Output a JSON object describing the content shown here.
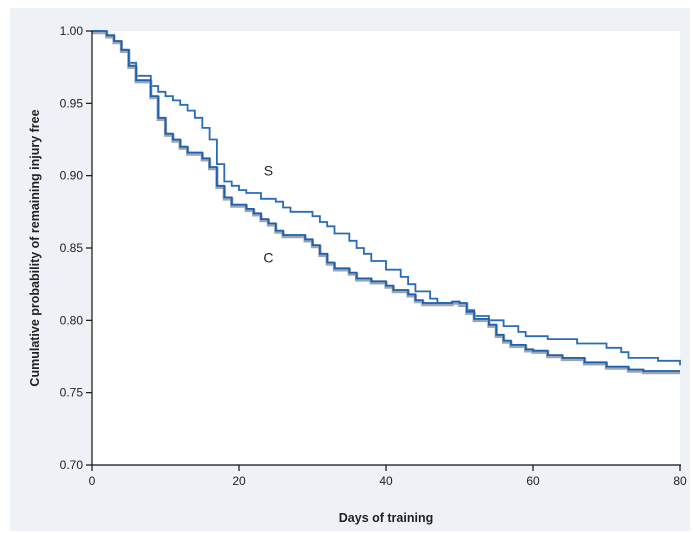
{
  "chart_data": {
    "type": "line",
    "title": "",
    "xlabel": "Days of training",
    "ylabel": "Cumulative probability of remaining injury free",
    "xlim": [
      0,
      80
    ],
    "ylim": [
      0.7,
      1.0
    ],
    "xticks": [
      0,
      20,
      40,
      60,
      80
    ],
    "xtick_labels": [
      "0",
      "20",
      "40",
      "60",
      "80"
    ],
    "yticks": [
      0.7,
      0.75,
      0.8,
      0.85,
      0.9,
      0.95,
      1.0
    ],
    "ytick_labels": [
      "0.70",
      "0.75",
      "0.80",
      "0.85",
      "0.90",
      "0.95",
      "1.00"
    ],
    "grid": false,
    "series": [
      {
        "name": "S",
        "color": "#2a6cb5",
        "step": true,
        "label_at": [
          24.0,
          0.9
        ],
        "points": [
          [
            0,
            1.0
          ],
          [
            1,
            0.999
          ],
          [
            2,
            0.997
          ],
          [
            3,
            0.993
          ],
          [
            4,
            0.987
          ],
          [
            5,
            0.978
          ],
          [
            6,
            0.969
          ],
          [
            8,
            0.962
          ],
          [
            9,
            0.958
          ],
          [
            10,
            0.955
          ],
          [
            11,
            0.952
          ],
          [
            12,
            0.949
          ],
          [
            13,
            0.945
          ],
          [
            14,
            0.94
          ],
          [
            15,
            0.933
          ],
          [
            16,
            0.925
          ],
          [
            17,
            0.908
          ],
          [
            18,
            0.896
          ],
          [
            19,
            0.893
          ],
          [
            20,
            0.89
          ],
          [
            21,
            0.888
          ],
          [
            23,
            0.884
          ],
          [
            25,
            0.882
          ],
          [
            26,
            0.878
          ],
          [
            27,
            0.875
          ],
          [
            30,
            0.872
          ],
          [
            31,
            0.868
          ],
          [
            32,
            0.865
          ],
          [
            33,
            0.86
          ],
          [
            35,
            0.855
          ],
          [
            36,
            0.85
          ],
          [
            37,
            0.846
          ],
          [
            38,
            0.841
          ],
          [
            40,
            0.835
          ],
          [
            42,
            0.83
          ],
          [
            43,
            0.825
          ],
          [
            44,
            0.82
          ],
          [
            46,
            0.815
          ],
          [
            47,
            0.812
          ],
          [
            50,
            0.81
          ],
          [
            51,
            0.807
          ],
          [
            52,
            0.803
          ],
          [
            54,
            0.8
          ],
          [
            56,
            0.796
          ],
          [
            58,
            0.792
          ],
          [
            59,
            0.789
          ],
          [
            62,
            0.787
          ],
          [
            66,
            0.784
          ],
          [
            70,
            0.781
          ],
          [
            72,
            0.778
          ],
          [
            73,
            0.774
          ],
          [
            77,
            0.772
          ],
          [
            80,
            0.769
          ]
        ]
      },
      {
        "name": "C",
        "color": "#1f5fae",
        "shadow_color": "#9aa6b4",
        "step": true,
        "label_at": [
          24.0,
          0.84
        ],
        "points": [
          [
            0,
            1.0
          ],
          [
            2,
            0.997
          ],
          [
            3,
            0.993
          ],
          [
            4,
            0.987
          ],
          [
            5,
            0.976
          ],
          [
            6,
            0.966
          ],
          [
            8,
            0.955
          ],
          [
            9,
            0.94
          ],
          [
            10,
            0.929
          ],
          [
            11,
            0.925
          ],
          [
            12,
            0.92
          ],
          [
            13,
            0.916
          ],
          [
            15,
            0.912
          ],
          [
            16,
            0.906
          ],
          [
            17,
            0.893
          ],
          [
            18,
            0.885
          ],
          [
            19,
            0.88
          ],
          [
            21,
            0.877
          ],
          [
            22,
            0.874
          ],
          [
            23,
            0.87
          ],
          [
            24,
            0.867
          ],
          [
            25,
            0.862
          ],
          [
            26,
            0.859
          ],
          [
            29,
            0.856
          ],
          [
            30,
            0.852
          ],
          [
            31,
            0.846
          ],
          [
            32,
            0.84
          ],
          [
            33,
            0.836
          ],
          [
            35,
            0.833
          ],
          [
            36,
            0.829
          ],
          [
            38,
            0.827
          ],
          [
            40,
            0.824
          ],
          [
            41,
            0.821
          ],
          [
            43,
            0.818
          ],
          [
            44,
            0.814
          ],
          [
            45,
            0.812
          ],
          [
            49,
            0.813
          ],
          [
            50,
            0.812
          ],
          [
            51,
            0.806
          ],
          [
            52,
            0.801
          ],
          [
            54,
            0.797
          ],
          [
            55,
            0.79
          ],
          [
            56,
            0.786
          ],
          [
            57,
            0.783
          ],
          [
            59,
            0.78
          ],
          [
            60,
            0.779
          ],
          [
            62,
            0.776
          ],
          [
            64,
            0.774
          ],
          [
            67,
            0.771
          ],
          [
            70,
            0.768
          ],
          [
            73,
            0.766
          ],
          [
            75,
            0.765
          ],
          [
            80,
            0.765
          ]
        ]
      }
    ]
  }
}
